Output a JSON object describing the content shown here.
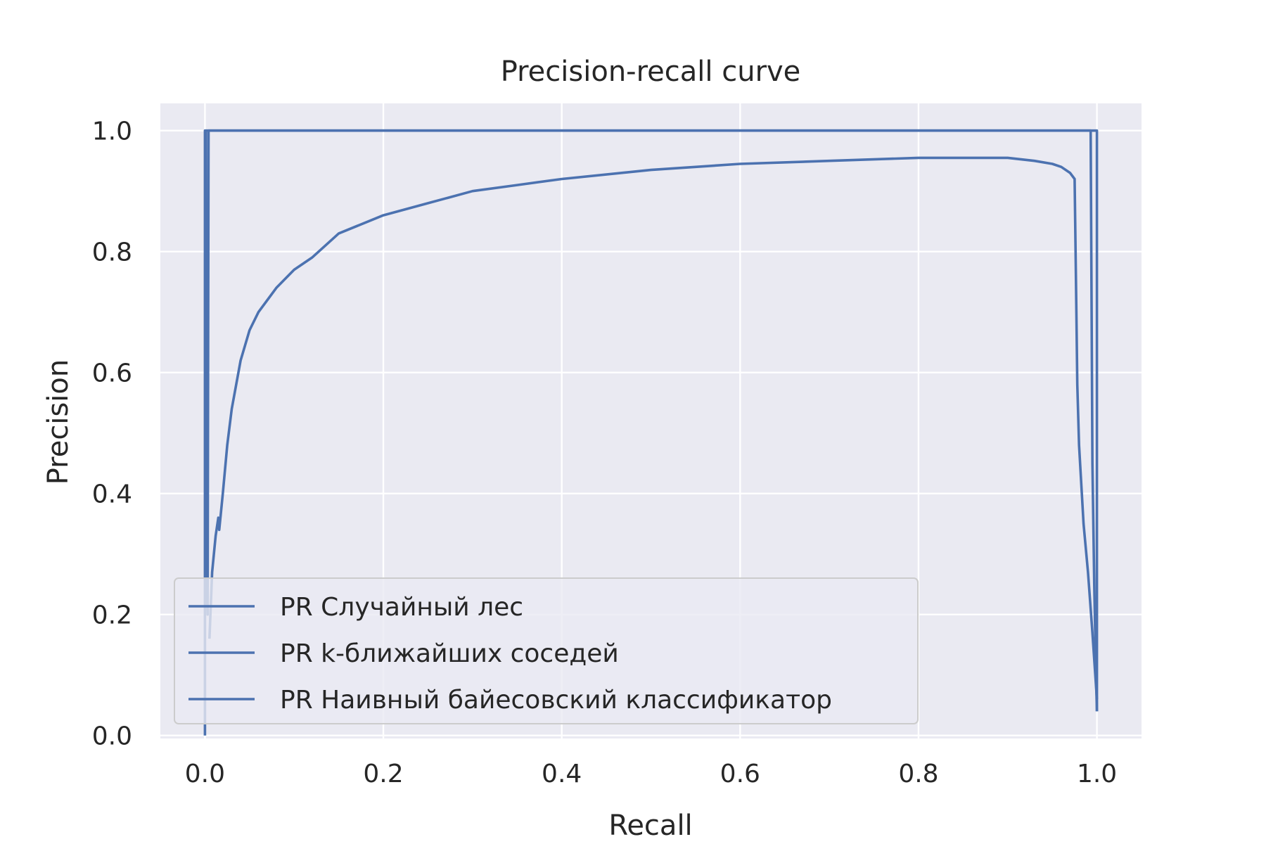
{
  "chart_data": {
    "type": "line",
    "title": "Precision-recall curve",
    "xlabel": "Recall",
    "ylabel": "Precision",
    "xlim": [
      -0.05,
      1.05
    ],
    "ylim": [
      -0.005,
      1.045
    ],
    "xticks": [
      0.0,
      0.2,
      0.4,
      0.6,
      0.8,
      1.0
    ],
    "yticks": [
      0.0,
      0.2,
      0.4,
      0.6,
      0.8,
      1.0
    ],
    "xtick_labels": [
      "0.0",
      "0.2",
      "0.4",
      "0.6",
      "0.8",
      "1.0"
    ],
    "ytick_labels": [
      "0.0",
      "0.2",
      "0.4",
      "0.6",
      "0.8",
      "1.0"
    ],
    "grid": true,
    "legend_position": "lower-left",
    "colors": {
      "line": "#4c72b0",
      "plot_bg": "#eaeaf2",
      "grid": "#ffffff",
      "text": "#262626"
    },
    "series": [
      {
        "name": "PR Случайный лес",
        "x": [
          0.0,
          0.0,
          1.0,
          1.0
        ],
        "y": [
          0.0,
          1.0,
          1.0,
          0.04
        ]
      },
      {
        "name": "PR k-ближайших соседей",
        "x": [
          0.001,
          0.001,
          0.002,
          0.003,
          0.004,
          0.993,
          0.995,
          0.997,
          0.999,
          1.0
        ],
        "y": [
          1.0,
          0.6,
          0.26,
          0.2,
          1.0,
          1.0,
          0.45,
          0.25,
          0.1,
          0.04
        ]
      },
      {
        "name": "PR Наивный байесовский классификатор",
        "x": [
          0.005,
          0.008,
          0.012,
          0.015,
          0.016,
          0.02,
          0.025,
          0.03,
          0.04,
          0.05,
          0.06,
          0.08,
          0.1,
          0.12,
          0.15,
          0.2,
          0.25,
          0.3,
          0.35,
          0.4,
          0.5,
          0.6,
          0.7,
          0.8,
          0.9,
          0.93,
          0.95,
          0.96,
          0.97,
          0.975,
          0.977,
          0.978,
          0.98,
          0.985,
          0.99,
          0.995,
          1.0
        ],
        "y": [
          0.16,
          0.27,
          0.33,
          0.36,
          0.34,
          0.4,
          0.48,
          0.54,
          0.62,
          0.67,
          0.7,
          0.74,
          0.77,
          0.79,
          0.83,
          0.86,
          0.88,
          0.9,
          0.91,
          0.92,
          0.935,
          0.945,
          0.95,
          0.955,
          0.955,
          0.95,
          0.945,
          0.94,
          0.93,
          0.92,
          0.7,
          0.58,
          0.48,
          0.35,
          0.27,
          0.17,
          0.06
        ]
      }
    ]
  }
}
